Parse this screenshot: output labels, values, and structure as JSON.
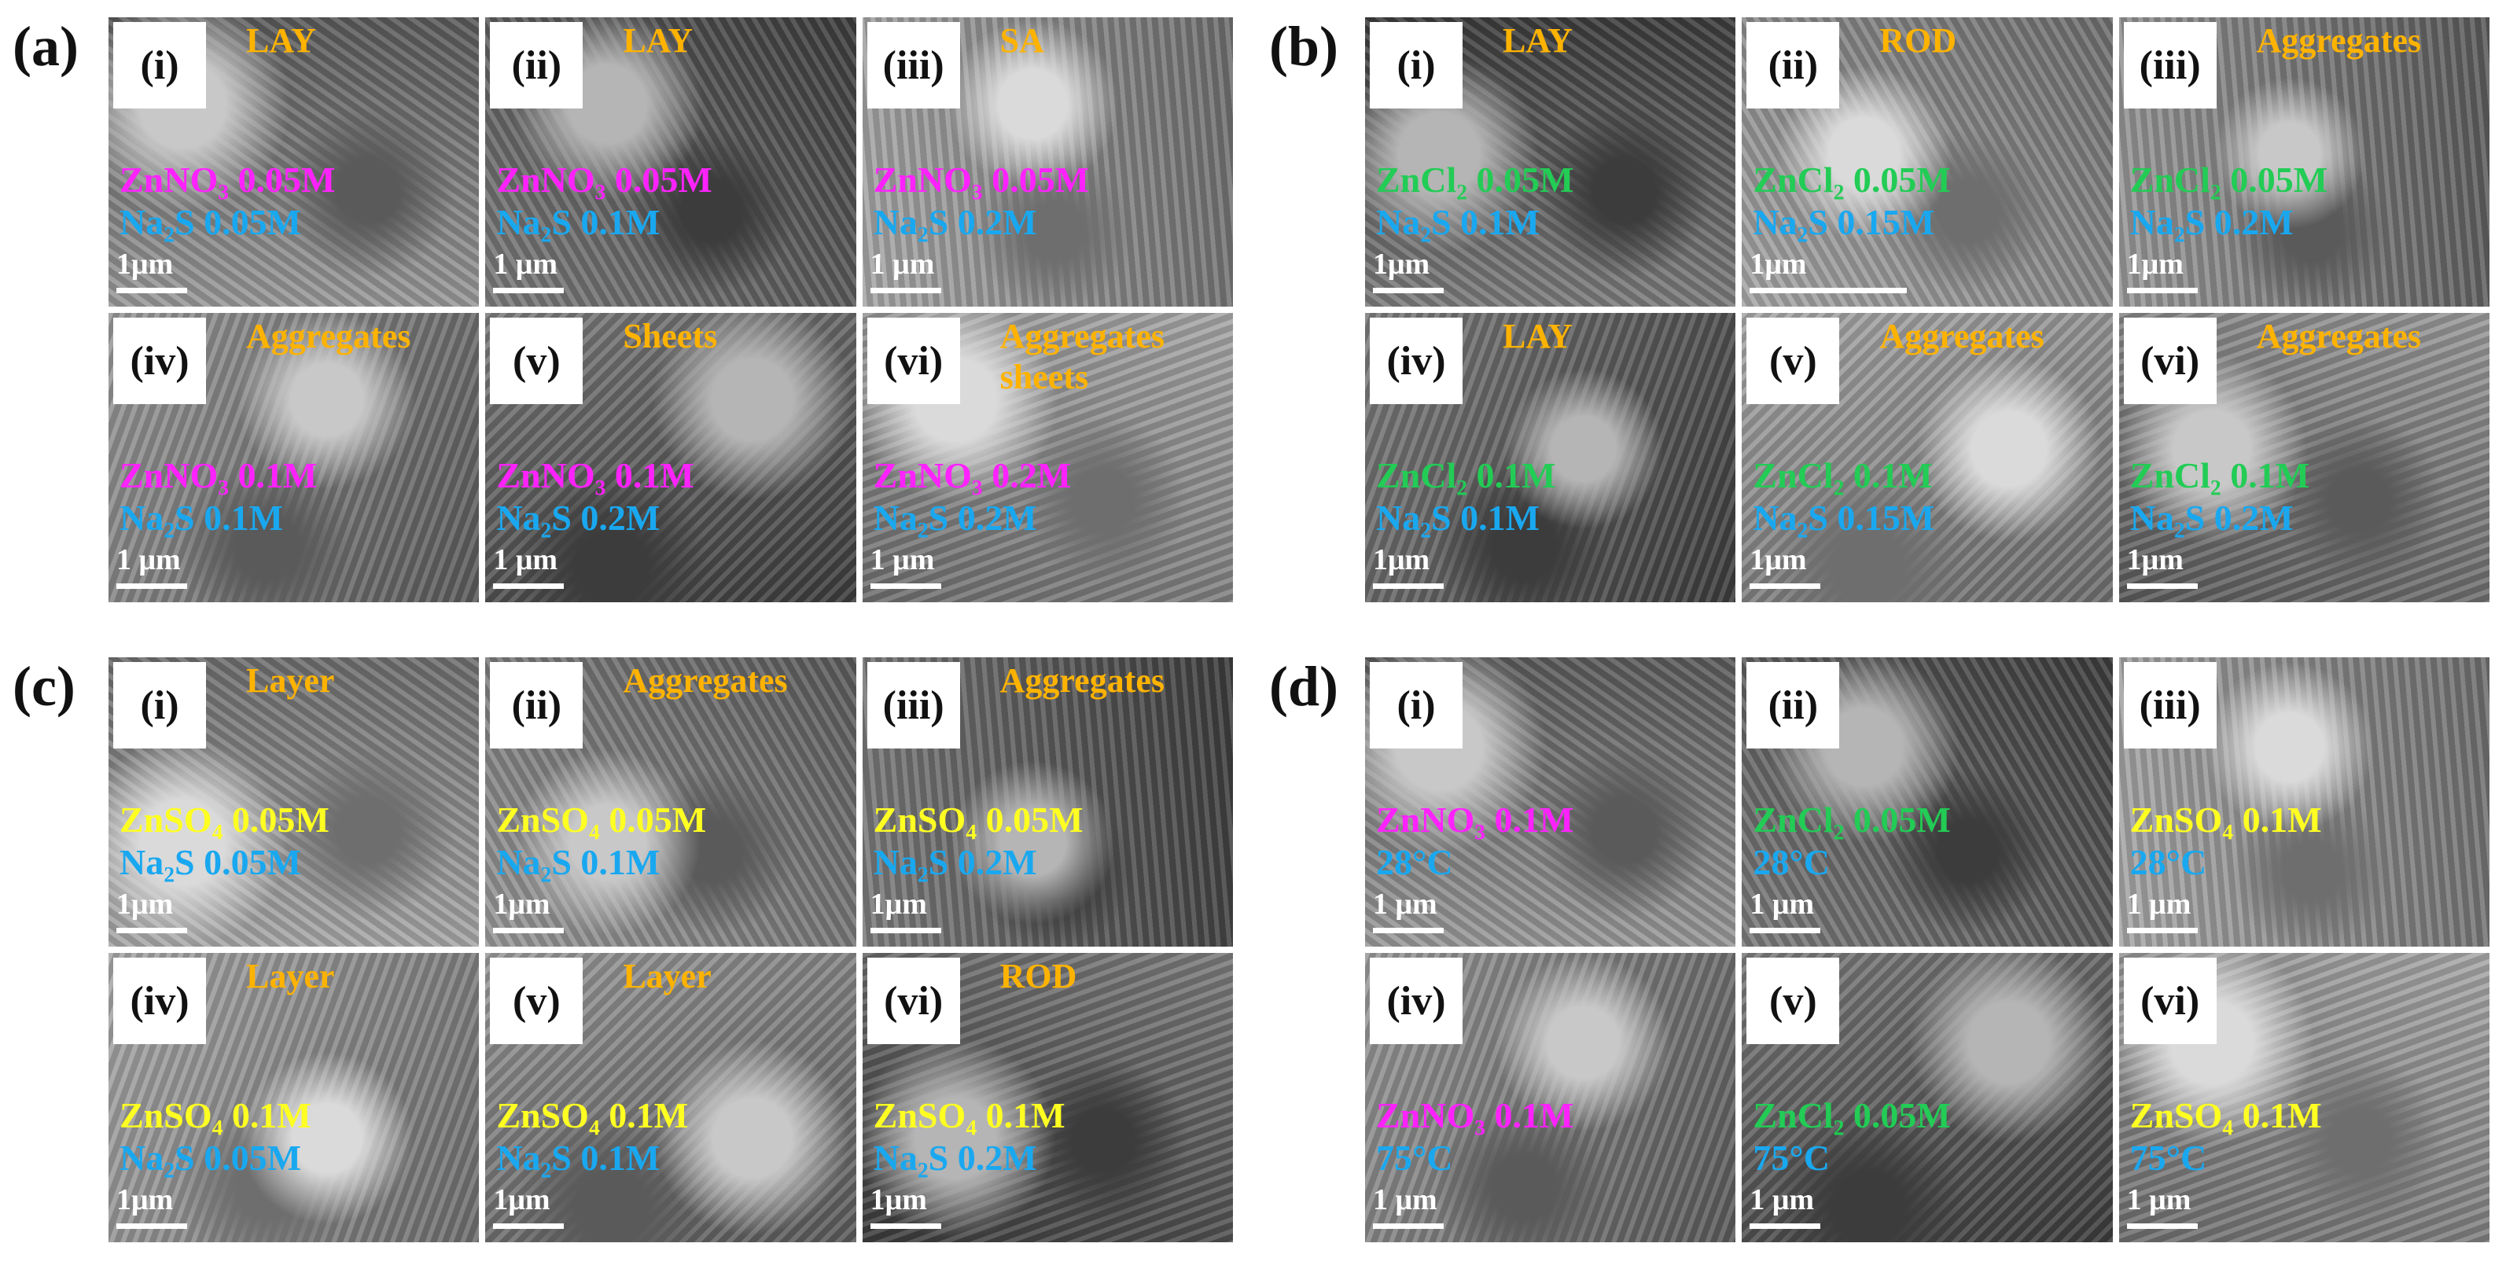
{
  "panels": [
    {
      "label": "(a)",
      "tiles": [
        {
          "numeral": "(i)",
          "morphology": "LAY",
          "line1": "ZnNO₃ 0.05M",
          "line1_color": "#ff22ff",
          "line2": "Na₂S 0.05M",
          "scale": "1μm"
        },
        {
          "numeral": "(ii)",
          "morphology": "LAY",
          "line1": "ZnNO₃ 0.05M",
          "line1_color": "#ff22ff",
          "line2": "Na₂S 0.1M",
          "scale": "1 μm"
        },
        {
          "numeral": "(iii)",
          "morphology": "SA",
          "line1": "ZnNO₃ 0.05M",
          "line1_color": "#ff22ff",
          "line2": "Na₂S 0.2M",
          "scale": "1 μm"
        },
        {
          "numeral": "(iv)",
          "morphology": "Aggregates",
          "line1": "ZnNO₃ 0.1M",
          "line1_color": "#ff22ff",
          "line2": "Na₂S 0.1M",
          "scale": "1 μm"
        },
        {
          "numeral": "(v)",
          "morphology": "Sheets",
          "line1": "ZnNO₃ 0.1M",
          "line1_color": "#ff22ff",
          "line2": "Na₂S 0.2M",
          "scale": "1 μm"
        },
        {
          "numeral": "(vi)",
          "morphology": "Aggregates sheets",
          "line1": "ZnNO₃ 0.2M",
          "line1_color": "#ff22ff",
          "line2": "Na₂S 0.2M",
          "scale": "1 μm"
        }
      ]
    },
    {
      "label": "(b)",
      "tiles": [
        {
          "numeral": "(i)",
          "morphology": "LAY",
          "line1": "ZnCl₂ 0.05M",
          "line1_color": "#22cc55",
          "line2": "Na₂S 0.1M",
          "scale": "1μm"
        },
        {
          "numeral": "(ii)",
          "morphology": "ROD",
          "line1": "ZnCl₂ 0.05M",
          "line1_color": "#22cc55",
          "line2": "Na₂S 0.15M",
          "scale": "1μm"
        },
        {
          "numeral": "(iii)",
          "morphology": "Aggregates",
          "line1": "ZnCl₂ 0.05M",
          "line1_color": "#22cc55",
          "line2": "Na₂S 0.2M",
          "scale": "1μm"
        },
        {
          "numeral": "(iv)",
          "morphology": "LAY",
          "line1": "ZnCl₂ 0.1M",
          "line1_color": "#22cc55",
          "line2": "Na₂S 0.1M",
          "scale": "1μm"
        },
        {
          "numeral": "(v)",
          "morphology": "Aggregates",
          "line1": "ZnCl₂ 0.1M",
          "line1_color": "#22cc55",
          "line2": "Na₂S 0.15M",
          "scale": "1μm"
        },
        {
          "numeral": "(vi)",
          "morphology": "Aggregates",
          "line1": "ZnCl₂ 0.1M",
          "line1_color": "#22cc55",
          "line2": "Na₂S 0.2M",
          "scale": "1μm"
        }
      ]
    },
    {
      "label": "(c)",
      "tiles": [
        {
          "numeral": "(i)",
          "morphology": "Layer",
          "line1": "ZnSO₄ 0.05M",
          "line1_color": "#ffff22",
          "line2": "Na₂S 0.05M",
          "scale": "1μm"
        },
        {
          "numeral": "(ii)",
          "morphology": "Aggregates",
          "line1": "ZnSO₄ 0.05M",
          "line1_color": "#ffff22",
          "line2": "Na₂S 0.1M",
          "scale": "1μm"
        },
        {
          "numeral": "(iii)",
          "morphology": "Aggregates",
          "line1": "ZnSO₄ 0.05M",
          "line1_color": "#ffff22",
          "line2": "Na₂S 0.2M",
          "scale": "1μm"
        },
        {
          "numeral": "(iv)",
          "morphology": "Layer",
          "line1": "ZnSO₄ 0.1M",
          "line1_color": "#ffff22",
          "line2": "Na₂S 0.05M",
          "scale": "1μm"
        },
        {
          "numeral": "(v)",
          "morphology": "Layer",
          "line1": "ZnSO₄ 0.1M",
          "line1_color": "#ffff22",
          "line2": "Na₂S 0.1M",
          "scale": "1μm"
        },
        {
          "numeral": "(vi)",
          "morphology": "ROD",
          "line1": "ZnSO₄ 0.1M",
          "line1_color": "#ffff22",
          "line2": "Na₂S 0.2M",
          "scale": "1μm"
        }
      ]
    },
    {
      "label": "(d)",
      "tiles": [
        {
          "numeral": "(i)",
          "line1": "ZnNO₃ 0.1M",
          "line1_color": "#ff22ff",
          "line2": "28°C",
          "scale": "1 μm"
        },
        {
          "numeral": "(ii)",
          "line1": "ZnCl₂ 0.05M",
          "line1_color": "#22cc55",
          "line2": "28°C",
          "scale": "1 μm"
        },
        {
          "numeral": "(iii)",
          "line1": "ZnSO₄ 0.1M",
          "line1_color": "#ffff22",
          "line2": "28°C",
          "scale": "1 μm"
        },
        {
          "numeral": "(iv)",
          "line1": "ZnNO₃ 0.1M",
          "line1_color": "#ff22ff",
          "line2": "75°C",
          "scale": "1 μm"
        },
        {
          "numeral": "(v)",
          "line1": "ZnCl₂ 0.05M",
          "line1_color": "#22cc55",
          "line2": "75°C",
          "scale": "1 μm"
        },
        {
          "numeral": "(vi)",
          "line1": "ZnSO₄ 0.1M",
          "line1_color": "#ffff22",
          "line2": "75°C",
          "scale": "1 μm"
        }
      ]
    }
  ]
}
